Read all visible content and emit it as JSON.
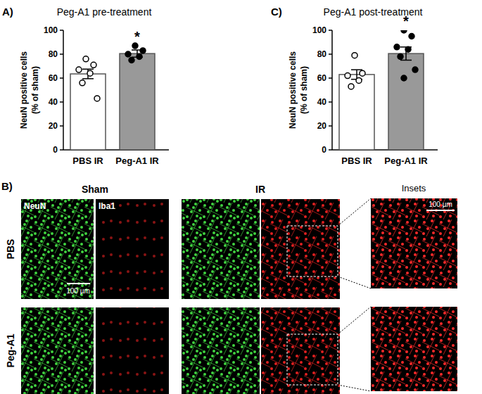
{
  "chart_data": [
    {
      "type": "bar",
      "title": "Peg-A1 pre-treatment",
      "annotations": [
        "A)",
        "*"
      ],
      "y_label": [
        "NeuN positive cells",
        "(% of sham)"
      ],
      "categories": [
        "PBS IR",
        "Peg-A1 IR"
      ],
      "values": [
        63.5,
        80.5
      ],
      "errors": [
        4,
        3
      ],
      "points": [
        [
          76,
          71,
          67,
          64,
          56,
          43
        ],
        [
          87,
          83,
          80,
          78,
          75
        ]
      ],
      "colors": [
        "#ffffff",
        "#999999"
      ],
      "ylim": [
        0,
        100
      ],
      "yticks": [
        0,
        20,
        40,
        60,
        80,
        100
      ],
      "grid": false
    },
    {
      "type": "bar",
      "title": "Peg-A1 post-treatment",
      "annotations": [
        "C)",
        "*"
      ],
      "y_label": [
        "NeuN positive cells",
        "(% of sham)"
      ],
      "categories": [
        "PBS IR",
        "Peg-A1 IR"
      ],
      "values": [
        63,
        80.5
      ],
      "errors": [
        4,
        5.5
      ],
      "points": [
        [
          79,
          64,
          62,
          58,
          53
        ],
        [
          100,
          95,
          86,
          84,
          78,
          67,
          60
        ]
      ],
      "colors": [
        "#ffffff",
        "#999999"
      ],
      "ylim": [
        0,
        100
      ],
      "yticks": [
        0,
        20,
        40,
        60,
        80,
        100
      ],
      "grid": false
    }
  ],
  "panel_b": {
    "label": "B)",
    "columns": [
      "Sham",
      "IR",
      "Insets"
    ],
    "rows": [
      "PBS",
      "Peg-A1"
    ],
    "channels": [
      "NeuN",
      "Iba1"
    ],
    "scale_bar": "100 µm"
  }
}
